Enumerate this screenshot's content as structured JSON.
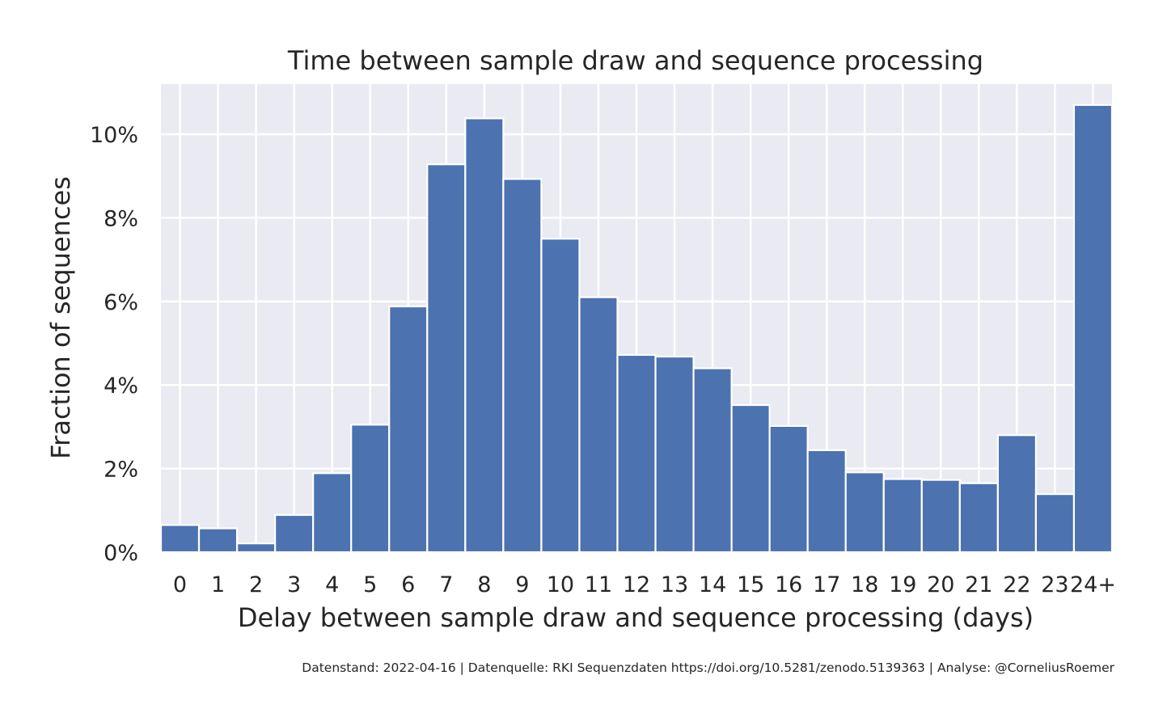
{
  "chart_data": {
    "type": "bar",
    "title": "Time between sample draw and sequence processing",
    "xlabel": "Delay between sample draw and sequence processing (days)",
    "ylabel": "Fraction of sequences",
    "categories": [
      "0",
      "1",
      "2",
      "3",
      "4",
      "5",
      "6",
      "7",
      "8",
      "9",
      "10",
      "11",
      "12",
      "13",
      "14",
      "15",
      "16",
      "17",
      "18",
      "19",
      "20",
      "21",
      "22",
      "23",
      "24+"
    ],
    "values": [
      0.65,
      0.57,
      0.21,
      0.89,
      1.89,
      3.05,
      5.88,
      9.28,
      10.38,
      8.93,
      7.5,
      6.1,
      4.72,
      4.68,
      4.4,
      3.52,
      3.02,
      2.44,
      1.91,
      1.75,
      1.73,
      1.65,
      2.8,
      1.39,
      10.7
    ],
    "yticks": [
      0,
      2,
      4,
      6,
      8,
      10
    ],
    "ytick_labels": [
      "0%",
      "2%",
      "4%",
      "6%",
      "8%",
      "10%"
    ],
    "ylim": [
      0,
      11.2
    ],
    "grid": true,
    "colors": {
      "bar": "#4c72b0",
      "plot_background": "#eaeaf2",
      "grid": "#ffffff"
    }
  },
  "footer": "Datenstand: 2022-04-16 | Datenquelle: RKI Sequenzdaten https://doi.org/10.5281/zenodo.5139363 | Analyse: @CorneliusRoemer"
}
